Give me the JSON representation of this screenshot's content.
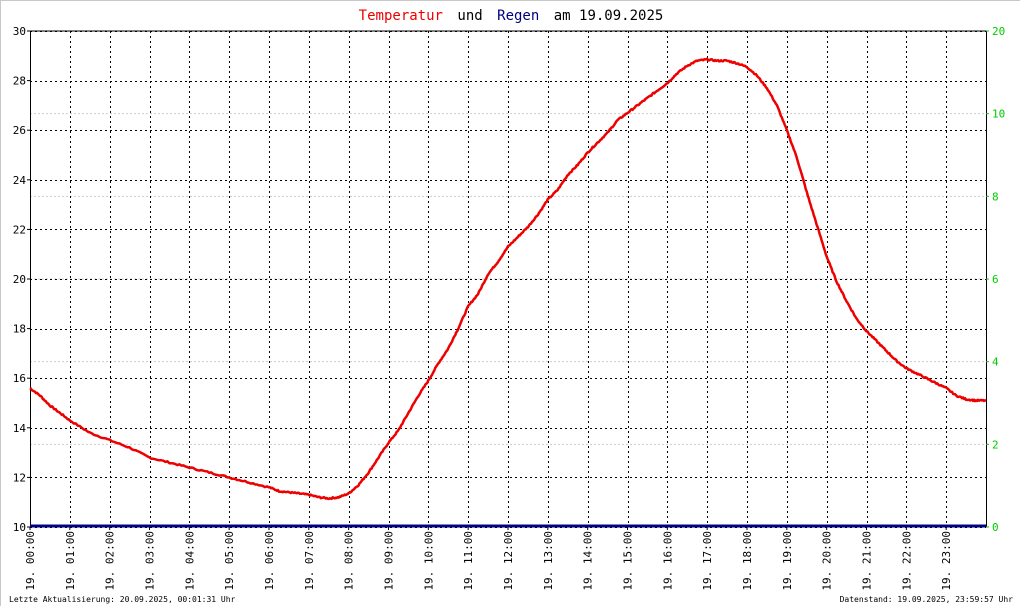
{
  "title": {
    "part1": "Temperatur",
    "part2": "und",
    "part3": "Regen",
    "part4": "am 19.09.2025"
  },
  "colors": {
    "temperature": "#ee0000",
    "rain": "#000080",
    "right_axis": "#00cc00",
    "grid": "#000000",
    "minor_grid": "#cccccc"
  },
  "footer": {
    "left": "Letzte Aktualisierung: 20.09.2025, 00:01:31 Uhr",
    "right": "Datenstand: 19.09.2025, 23:59:57 Uhr"
  },
  "chart_data": {
    "type": "line",
    "x_ticks": [
      "19. 00:00",
      "19. 01:00",
      "19. 02:00",
      "19. 03:00",
      "19. 04:00",
      "19. 05:00",
      "19. 06:00",
      "19. 07:00",
      "19. 08:00",
      "19. 09:00",
      "19. 10:00",
      "19. 11:00",
      "19. 12:00",
      "19. 13:00",
      "19. 14:00",
      "19. 15:00",
      "19. 16:00",
      "19. 17:00",
      "19. 18:00",
      "19. 19:00",
      "19. 20:00",
      "19. 21:00",
      "19. 22:00",
      "19. 23:00"
    ],
    "x_range_hours": [
      0,
      24
    ],
    "ylim_left": [
      10,
      30
    ],
    "y_ticks_left": [
      "10",
      "12",
      "14",
      "16",
      "18",
      "20",
      "22",
      "24",
      "26",
      "28",
      "30"
    ],
    "y_ticks_right": [
      "0",
      "2",
      "4",
      "6",
      "8",
      "10",
      "20"
    ],
    "grid": true,
    "series": [
      {
        "name": "Temperatur",
        "hours": [
          0,
          0.25,
          0.5,
          0.75,
          1,
          1.5,
          2,
          2.5,
          3,
          3.5,
          4,
          4.5,
          5,
          5.5,
          6,
          6.25,
          6.5,
          6.75,
          7,
          7.25,
          7.5,
          7.75,
          8,
          8.25,
          8.5,
          8.75,
          9,
          9.25,
          9.5,
          9.75,
          10,
          10.25,
          10.5,
          10.75,
          11,
          11.25,
          11.5,
          11.75,
          12,
          12.25,
          12.5,
          12.75,
          13,
          13.25,
          13.5,
          13.75,
          14,
          14.25,
          14.5,
          14.75,
          15,
          15.25,
          15.5,
          15.75,
          16,
          16.25,
          16.5,
          16.75,
          17,
          17.25,
          17.5,
          17.75,
          18,
          18.25,
          18.5,
          18.75,
          19,
          19.25,
          19.5,
          19.75,
          20,
          20.25,
          20.5,
          20.75,
          21,
          21.25,
          21.5,
          21.75,
          22,
          22.25,
          22.5,
          22.75,
          23,
          23.25,
          23.5,
          23.75,
          24
        ],
        "values": [
          15.6,
          15.3,
          14.9,
          14.6,
          14.3,
          13.8,
          13.5,
          13.2,
          12.8,
          12.6,
          12.4,
          12.2,
          12.0,
          11.8,
          11.6,
          11.45,
          11.4,
          11.35,
          11.3,
          11.2,
          11.15,
          11.2,
          11.35,
          11.7,
          12.2,
          12.8,
          13.4,
          13.9,
          14.6,
          15.3,
          15.9,
          16.6,
          17.2,
          18.0,
          18.9,
          19.4,
          20.2,
          20.7,
          21.3,
          21.7,
          22.1,
          22.6,
          23.2,
          23.6,
          24.2,
          24.6,
          25.1,
          25.5,
          25.9,
          26.4,
          26.7,
          27.0,
          27.3,
          27.6,
          27.9,
          28.3,
          28.6,
          28.8,
          28.85,
          28.8,
          28.8,
          28.7,
          28.55,
          28.2,
          27.7,
          27.0,
          26.0,
          24.9,
          23.5,
          22.2,
          20.9,
          19.9,
          19.1,
          18.4,
          17.9,
          17.5,
          17.1,
          16.7,
          16.4,
          16.2,
          16.0,
          15.8,
          15.6,
          15.3,
          15.15,
          15.1,
          15.1
        ]
      },
      {
        "name": "Regen",
        "hours": [
          0,
          24
        ],
        "values": [
          0,
          0
        ]
      }
    ]
  }
}
